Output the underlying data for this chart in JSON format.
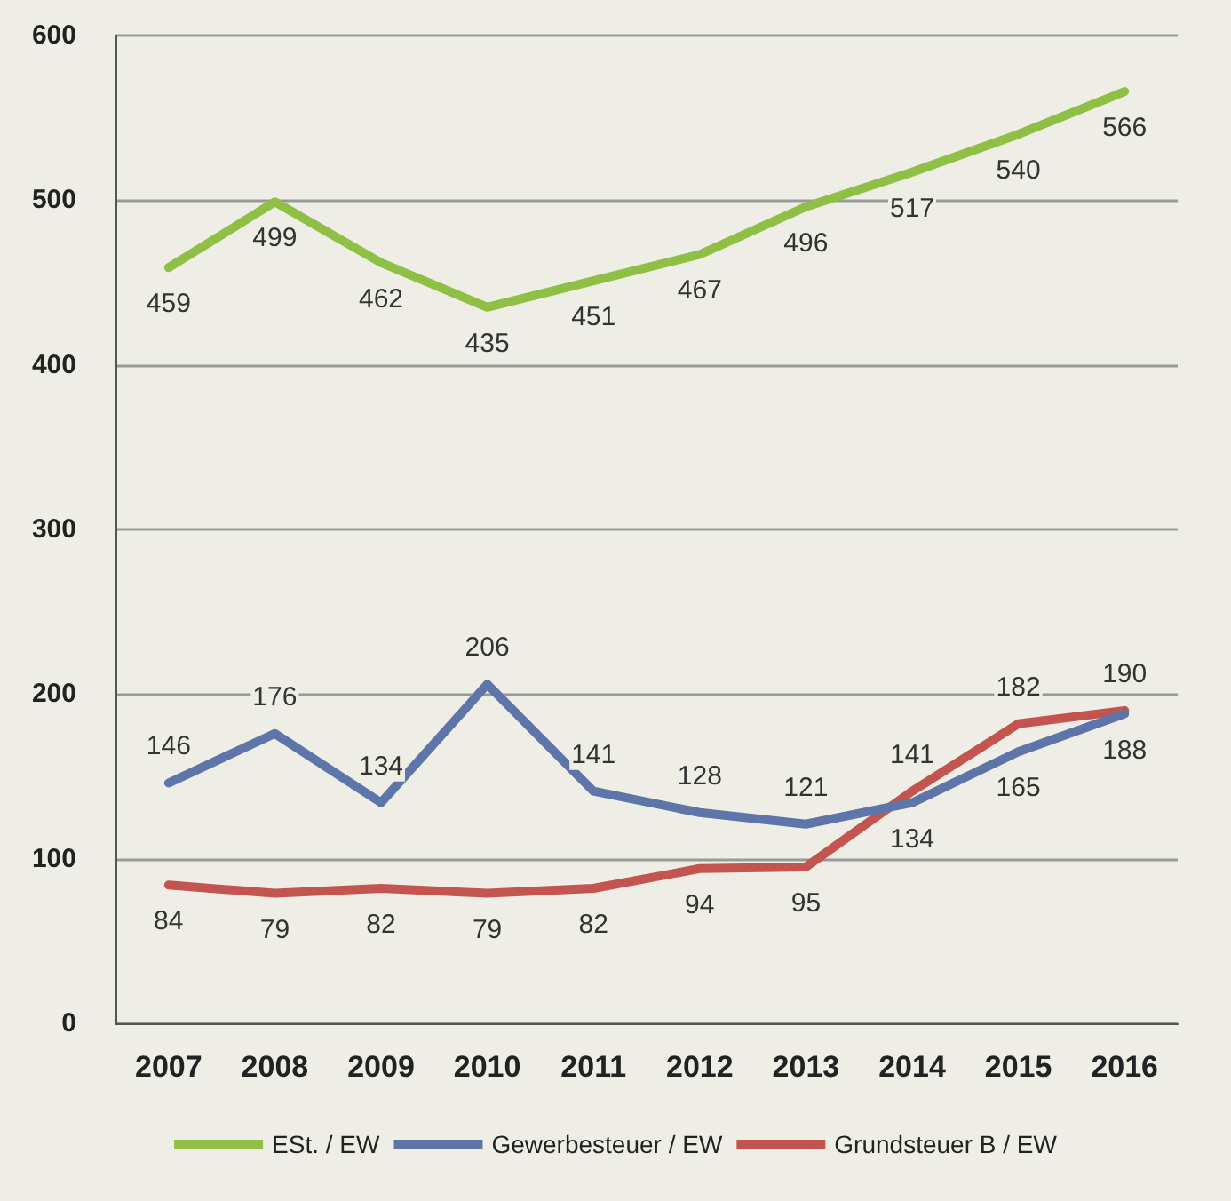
{
  "chart_data": {
    "type": "line",
    "categories": [
      "2007",
      "2008",
      "2009",
      "2010",
      "2011",
      "2012",
      "2013",
      "2014",
      "2015",
      "2016"
    ],
    "series": [
      {
        "name": "ESt. / EW",
        "color": "#8fbf45",
        "values": [
          459,
          499,
          462,
          435,
          451,
          467,
          496,
          517,
          540,
          566
        ]
      },
      {
        "name": "Gewerbesteuer / EW",
        "color": "#5d75a8",
        "values": [
          146,
          176,
          134,
          206,
          141,
          128,
          121,
          134,
          165,
          188
        ]
      },
      {
        "name": "Grundsteuer B / EW",
        "color": "#c4544f",
        "values": [
          84,
          79,
          82,
          79,
          82,
          94,
          95,
          141,
          182,
          190
        ]
      }
    ],
    "ylim": [
      0,
      600
    ],
    "yticks": [
      0,
      100,
      200,
      300,
      400,
      500,
      600
    ],
    "grid": "y",
    "legend": "bottom",
    "marker": "none",
    "line_style": "solid",
    "data_labels": true
  }
}
